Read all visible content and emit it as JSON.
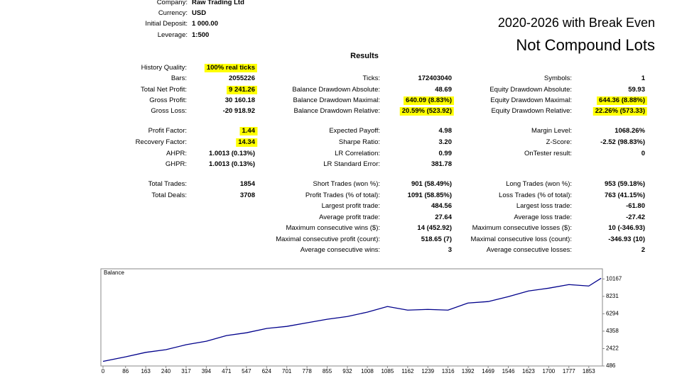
{
  "header": {
    "rows": [
      {
        "label": "Company:",
        "value": "Raw Trading Ltd"
      },
      {
        "label": "Currency:",
        "value": "USD"
      },
      {
        "label": "Initial Deposit:",
        "value": "1 000.00"
      },
      {
        "label": "Leverage:",
        "value": "1:500"
      }
    ]
  },
  "headline": {
    "line1": "2020-2026 with Break Even",
    "line2": "Not Compound Lots"
  },
  "results": {
    "title": "Results",
    "items": [
      {
        "label": "History Quality:",
        "value": "100% real ticks"
      },
      {
        "label": "Bars:",
        "value": "2055226"
      },
      {
        "label": "Total Net Profit:",
        "value": "9 241.26"
      },
      {
        "label": "Gross Profit:",
        "value": "30 160.18"
      },
      {
        "label": "Gross Loss:",
        "value": "-20 918.92"
      },
      {
        "label": "Profit Factor:",
        "value": "1.44"
      },
      {
        "label": "Recovery Factor:",
        "value": "14.34"
      },
      {
        "label": "AHPR:",
        "value": "1.0013 (0.13%)"
      },
      {
        "label": "GHPR:",
        "value": "1.0013 (0.13%)"
      },
      {
        "label": "Total Trades:",
        "value": "1854"
      },
      {
        "label": "Total Deals:",
        "value": "3708"
      },
      {
        "label": "Ticks:",
        "value": "172403040"
      },
      {
        "label": "Balance Drawdown Absolute:",
        "value": "48.69"
      },
      {
        "label": "Balance Drawdown Maximal:",
        "value": "640.09 (8.83%)"
      },
      {
        "label": "Balance Drawdown Relative:",
        "value": "20.59% (523.92)"
      },
      {
        "label": "Expected Payoff:",
        "value": "4.98"
      },
      {
        "label": "Sharpe Ratio:",
        "value": "3.20"
      },
      {
        "label": "LR Correlation:",
        "value": "0.99"
      },
      {
        "label": "LR Standard Error:",
        "value": "381.78"
      },
      {
        "label": "Short Trades (won %):",
        "value": "901 (58.49%)"
      },
      {
        "label": "Profit Trades (% of total):",
        "value": "1091 (58.85%)"
      },
      {
        "label": "Largest profit trade:",
        "value": "484.56"
      },
      {
        "label": "Average profit trade:",
        "value": "27.64"
      },
      {
        "label": "Maximum consecutive wins ($):",
        "value": "14 (452.92)"
      },
      {
        "label": "Maximal consecutive profit (count):",
        "value": "518.65 (7)"
      },
      {
        "label": "Average consecutive wins:",
        "value": "3"
      },
      {
        "label": "Symbols:",
        "value": "1"
      },
      {
        "label": "Equity Drawdown Absolute:",
        "value": "59.93"
      },
      {
        "label": "Equity Drawdown Maximal:",
        "value": "644.36 (8.88%)"
      },
      {
        "label": "Equity Drawdown Relative:",
        "value": "22.26% (573.33)"
      },
      {
        "label": "Margin Level:",
        "value": "1068.26%"
      },
      {
        "label": "Z-Score:",
        "value": "-2.52 (98.83%)"
      },
      {
        "label": "OnTester result:",
        "value": "0"
      },
      {
        "label": "Long Trades (won %):",
        "value": "953 (59.18%)"
      },
      {
        "label": "Loss Trades (% of total):",
        "value": "763 (41.15%)"
      },
      {
        "label": "Largest loss trade:",
        "value": "-61.80"
      },
      {
        "label": "Average loss trade:",
        "value": "-27.42"
      },
      {
        "label": "Maximum consecutive losses ($):",
        "value": "10 (-346.93)"
      },
      {
        "label": "Maximal consecutive loss (count):",
        "value": "-346.93 (10)"
      },
      {
        "label": "Average consecutive losses:",
        "value": "2"
      }
    ]
  },
  "chart_data": {
    "type": "line",
    "title": "Balance",
    "color": "#00008b",
    "x": [
      0,
      86,
      163,
      240,
      317,
      394,
      471,
      547,
      624,
      701,
      778,
      855,
      932,
      1008,
      1085,
      1162,
      1239,
      1316,
      1392,
      1469,
      1546,
      1623,
      1700,
      1777,
      1853,
      1900
    ],
    "values": [
      1000,
      1500,
      2000,
      2300,
      2850,
      3240,
      3870,
      4180,
      4660,
      4890,
      5290,
      5680,
      5990,
      6470,
      7100,
      6700,
      6780,
      6700,
      7490,
      7650,
      8200,
      8830,
      9140,
      9540,
      9380,
      10241
    ],
    "xlim": [
      0,
      1905
    ],
    "ylim": [
      486,
      10900
    ],
    "xticks": [
      0,
      86,
      163,
      240,
      317,
      394,
      471,
      547,
      624,
      701,
      778,
      855,
      932,
      1008,
      1085,
      1162,
      1239,
      1316,
      1392,
      1469,
      1546,
      1623,
      1700,
      1777,
      1853
    ],
    "yticks": [
      486,
      2422,
      4358,
      6294,
      8231,
      10167
    ]
  }
}
